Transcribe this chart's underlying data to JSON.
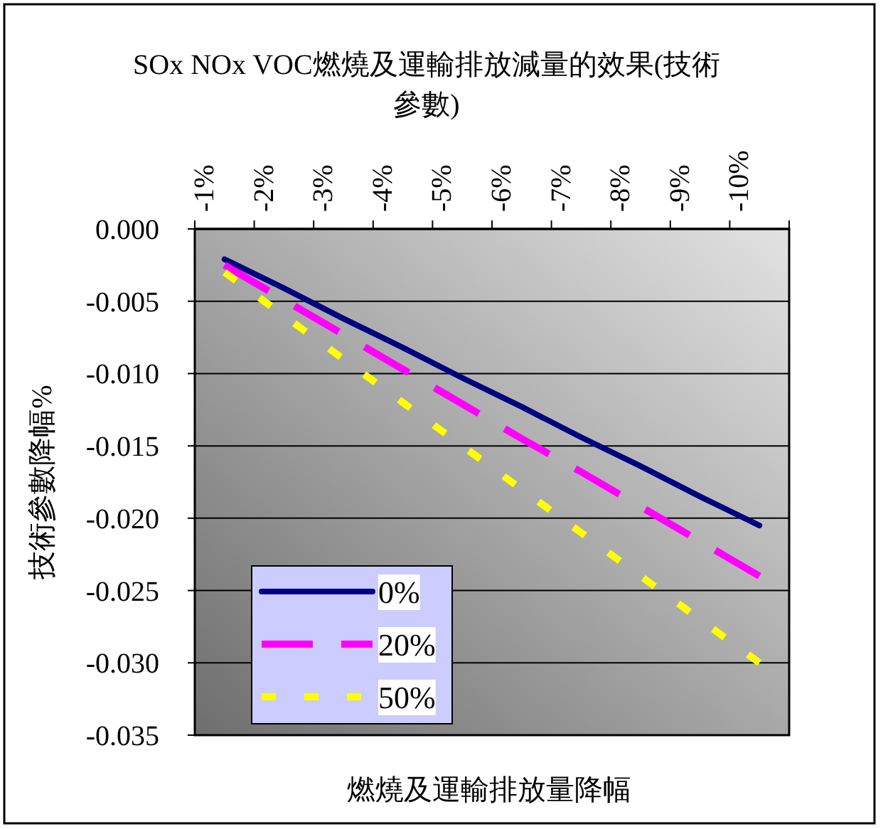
{
  "chart_data": {
    "type": "line",
    "title": "SOx NOx VOC燃燒及運輸排放減量的效果(技術參數)",
    "xlabel": "燃燒及運輸排放量降幅",
    "ylabel": "技術參數降幅%",
    "categories": [
      "-1%",
      "-2%",
      "-3%",
      "-4%",
      "-5%",
      "-6%",
      "-7%",
      "-8%",
      "-9%",
      "-10%"
    ],
    "ylim": [
      -0.035,
      0
    ],
    "yticks": [
      {
        "value": 0,
        "label": "0.000"
      },
      -0.005,
      {
        "value": -0.01,
        "label": "-0.010"
      },
      -0.015,
      {
        "value": -0.02,
        "label": "-0.020"
      },
      -0.025,
      {
        "value": -0.03,
        "label": "-0.030"
      },
      -0.035
    ],
    "grid": "y",
    "legend": "bottom left",
    "series": [
      {
        "name": "0%",
        "color": "#000080",
        "line_style": "solid",
        "values": [
          -0.0021,
          -0.0041,
          -0.0062,
          -0.0082,
          -0.0103,
          -0.0123,
          -0.0144,
          -0.0164,
          -0.0185,
          -0.0205
        ]
      },
      {
        "name": "20%",
        "color": "#ff00ff",
        "line_style": "dashed",
        "values": [
          -0.0025,
          -0.0049,
          -0.0073,
          -0.0097,
          -0.0121,
          -0.0145,
          -0.0168,
          -0.0192,
          -0.0216,
          -0.024
        ]
      },
      {
        "name": "50%",
        "color": "#ffff00",
        "line_style": "dotted",
        "values": [
          -0.003,
          -0.006,
          -0.009,
          -0.012,
          -0.015,
          -0.018,
          -0.021,
          -0.024,
          -0.027,
          -0.03
        ]
      }
    ]
  }
}
